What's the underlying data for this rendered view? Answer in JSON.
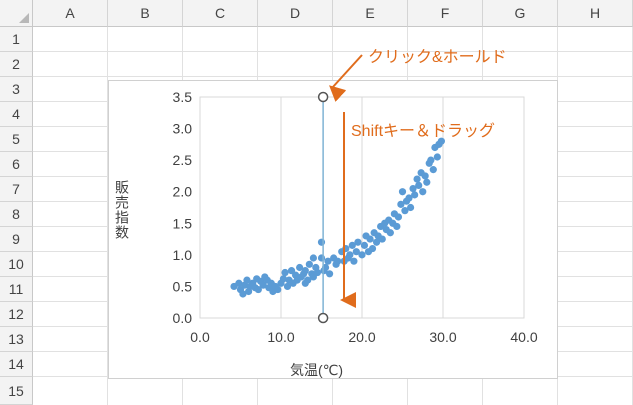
{
  "spreadsheet": {
    "columns": [
      "A",
      "B",
      "C",
      "D",
      "E",
      "F",
      "G",
      "H"
    ],
    "rows": [
      "1",
      "2",
      "3",
      "4",
      "5",
      "6",
      "7",
      "8",
      "9",
      "10",
      "11",
      "12",
      "13",
      "14",
      "15"
    ]
  },
  "annotations": {
    "click_hold": "クリック&ホールド",
    "shift_drag": "Shiftキー＆ドラッグ"
  },
  "colors": {
    "points": "#5b9bd5",
    "vertical_line": "#7fb3d5",
    "annotation": "#e06c1c"
  },
  "chart_data": {
    "type": "scatter",
    "xlabel": "気温(℃)",
    "ylabel": "販売指数",
    "xlim": [
      0,
      40
    ],
    "ylim": [
      0,
      3.5
    ],
    "x_ticks": [
      "0.0",
      "10.0",
      "20.0",
      "30.0",
      "40.0"
    ],
    "y_ticks": [
      "0.0",
      "0.5",
      "1.0",
      "1.5",
      "2.0",
      "2.5",
      "3.0",
      "3.5"
    ],
    "grid": "vertical",
    "marker_line_x": 15.2,
    "points": [
      [
        4.2,
        0.5
      ],
      [
        4.8,
        0.55
      ],
      [
        5.0,
        0.45
      ],
      [
        5.3,
        0.38
      ],
      [
        5.5,
        0.52
      ],
      [
        5.8,
        0.6
      ],
      [
        6.0,
        0.42
      ],
      [
        6.2,
        0.5
      ],
      [
        6.5,
        0.55
      ],
      [
        6.8,
        0.48
      ],
      [
        7.0,
        0.62
      ],
      [
        7.2,
        0.45
      ],
      [
        7.5,
        0.58
      ],
      [
        7.8,
        0.52
      ],
      [
        8.0,
        0.65
      ],
      [
        8.3,
        0.6
      ],
      [
        8.5,
        0.48
      ],
      [
        8.8,
        0.55
      ],
      [
        9.0,
        0.42
      ],
      [
        9.3,
        0.5
      ],
      [
        9.6,
        0.45
      ],
      [
        10.0,
        0.55
      ],
      [
        10.3,
        0.62
      ],
      [
        10.5,
        0.72
      ],
      [
        10.8,
        0.5
      ],
      [
        11.0,
        0.6
      ],
      [
        11.3,
        0.75
      ],
      [
        11.5,
        0.55
      ],
      [
        11.8,
        0.68
      ],
      [
        12.0,
        0.6
      ],
      [
        12.3,
        0.8
      ],
      [
        12.5,
        0.65
      ],
      [
        12.8,
        0.7
      ],
      [
        13.0,
        0.75
      ],
      [
        13.3,
        0.6
      ],
      [
        13.5,
        0.85
      ],
      [
        13.8,
        0.7
      ],
      [
        14.0,
        0.65
      ],
      [
        14.3,
        0.8
      ],
      [
        14.5,
        0.72
      ],
      [
        15.0,
        0.95
      ],
      [
        15.3,
        0.75
      ],
      [
        15.5,
        0.8
      ],
      [
        15.8,
        0.9
      ],
      [
        16.0,
        0.7
      ],
      [
        16.5,
        0.95
      ],
      [
        16.8,
        0.85
      ],
      [
        17.0,
        0.9
      ],
      [
        17.5,
        1.05
      ],
      [
        17.8,
        0.9
      ],
      [
        18.0,
        1.1
      ],
      [
        18.3,
        0.95
      ],
      [
        18.5,
        1.0
      ],
      [
        18.8,
        1.15
      ],
      [
        19.0,
        0.9
      ],
      [
        19.3,
        1.05
      ],
      [
        19.5,
        1.2
      ],
      [
        20.0,
        1.0
      ],
      [
        20.3,
        1.15
      ],
      [
        20.5,
        1.3
      ],
      [
        20.8,
        1.05
      ],
      [
        21.0,
        1.25
      ],
      [
        21.3,
        1.1
      ],
      [
        21.5,
        1.35
      ],
      [
        21.8,
        1.2
      ],
      [
        22.0,
        1.3
      ],
      [
        22.3,
        1.45
      ],
      [
        22.5,
        1.25
      ],
      [
        22.8,
        1.5
      ],
      [
        23.0,
        1.4
      ],
      [
        23.3,
        1.55
      ],
      [
        23.5,
        1.35
      ],
      [
        23.8,
        1.5
      ],
      [
        24.0,
        1.65
      ],
      [
        24.3,
        1.45
      ],
      [
        24.5,
        1.6
      ],
      [
        24.8,
        1.8
      ],
      [
        25.0,
        2.0
      ],
      [
        25.3,
        1.7
      ],
      [
        25.5,
        1.85
      ],
      [
        25.8,
        1.9
      ],
      [
        26.0,
        1.75
      ],
      [
        26.3,
        2.05
      ],
      [
        26.5,
        1.95
      ],
      [
        26.8,
        2.2
      ],
      [
        27.0,
        2.1
      ],
      [
        27.3,
        2.3
      ],
      [
        27.5,
        2.0
      ],
      [
        27.8,
        2.25
      ],
      [
        28.0,
        2.15
      ],
      [
        28.3,
        2.45
      ],
      [
        28.5,
        2.5
      ],
      [
        28.8,
        2.35
      ],
      [
        29.0,
        2.7
      ],
      [
        29.3,
        2.55
      ],
      [
        29.5,
        2.75
      ],
      [
        29.8,
        2.8
      ],
      [
        15.0,
        1.2
      ],
      [
        14.0,
        0.95
      ],
      [
        13.0,
        0.55
      ]
    ]
  }
}
